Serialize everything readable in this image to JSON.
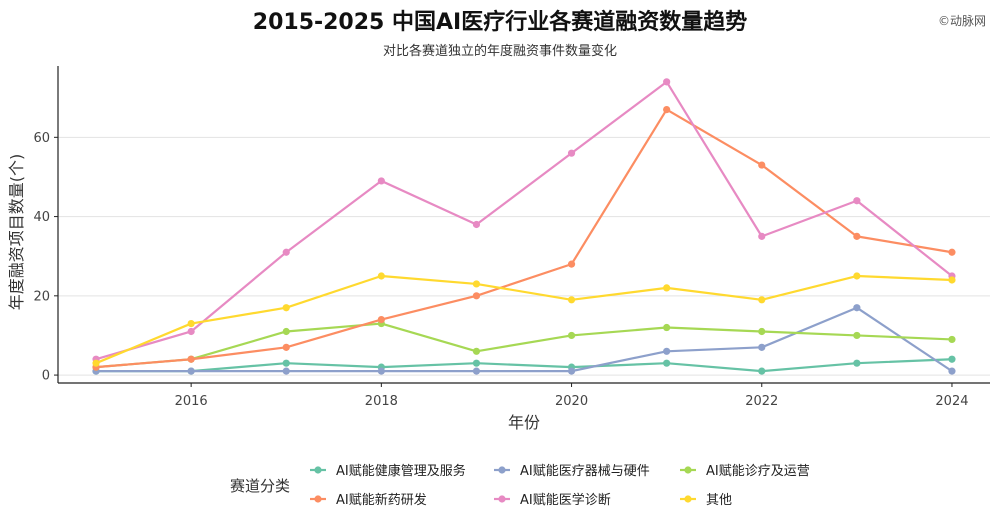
{
  "title": "2015-2025 中国AI医疗行业各赛道融资数量趋势",
  "subtitle": "对比各赛道独立的年度融资事件数量变化",
  "watermark": "©动脉网",
  "chart_data": {
    "type": "line",
    "xlabel": "年份",
    "ylabel": "年度融资项目数量(个)",
    "x": [
      2015,
      2016,
      2017,
      2018,
      2019,
      2020,
      2021,
      2022,
      2023,
      2024
    ],
    "xticks": [
      2016,
      2018,
      2020,
      2022,
      2024
    ],
    "yticks": [
      0,
      20,
      40,
      60
    ],
    "xlim": [
      2014.6,
      2024.4
    ],
    "ylim": [
      -2,
      78
    ],
    "grid": "horizontal",
    "legend": {
      "title": "赛道分类",
      "position": "bottom"
    },
    "series": [
      {
        "name": "AI赋能健康管理及服务",
        "color": "#66c2a5",
        "values": [
          1,
          1,
          3,
          2,
          3,
          2,
          3,
          1,
          3,
          4
        ]
      },
      {
        "name": "AI赋能医疗器械与硬件",
        "color": "#8da0cb",
        "values": [
          1,
          1,
          1,
          1,
          1,
          1,
          6,
          7,
          17,
          1
        ]
      },
      {
        "name": "AI赋能诊疗及运营",
        "color": "#a6d854",
        "values": [
          2,
          4,
          11,
          13,
          6,
          10,
          12,
          11,
          10,
          9
        ]
      },
      {
        "name": "AI赋能新药研发",
        "color": "#fc8d62",
        "values": [
          2,
          4,
          7,
          14,
          20,
          28,
          67,
          53,
          35,
          31
        ]
      },
      {
        "name": "AI赋能医学诊断",
        "color": "#e78ac3",
        "values": [
          4,
          11,
          31,
          49,
          38,
          56,
          74,
          35,
          44,
          25
        ]
      },
      {
        "name": "其他",
        "color": "#ffd92f",
        "values": [
          3,
          13,
          17,
          25,
          23,
          19,
          22,
          19,
          25,
          24
        ]
      }
    ]
  }
}
